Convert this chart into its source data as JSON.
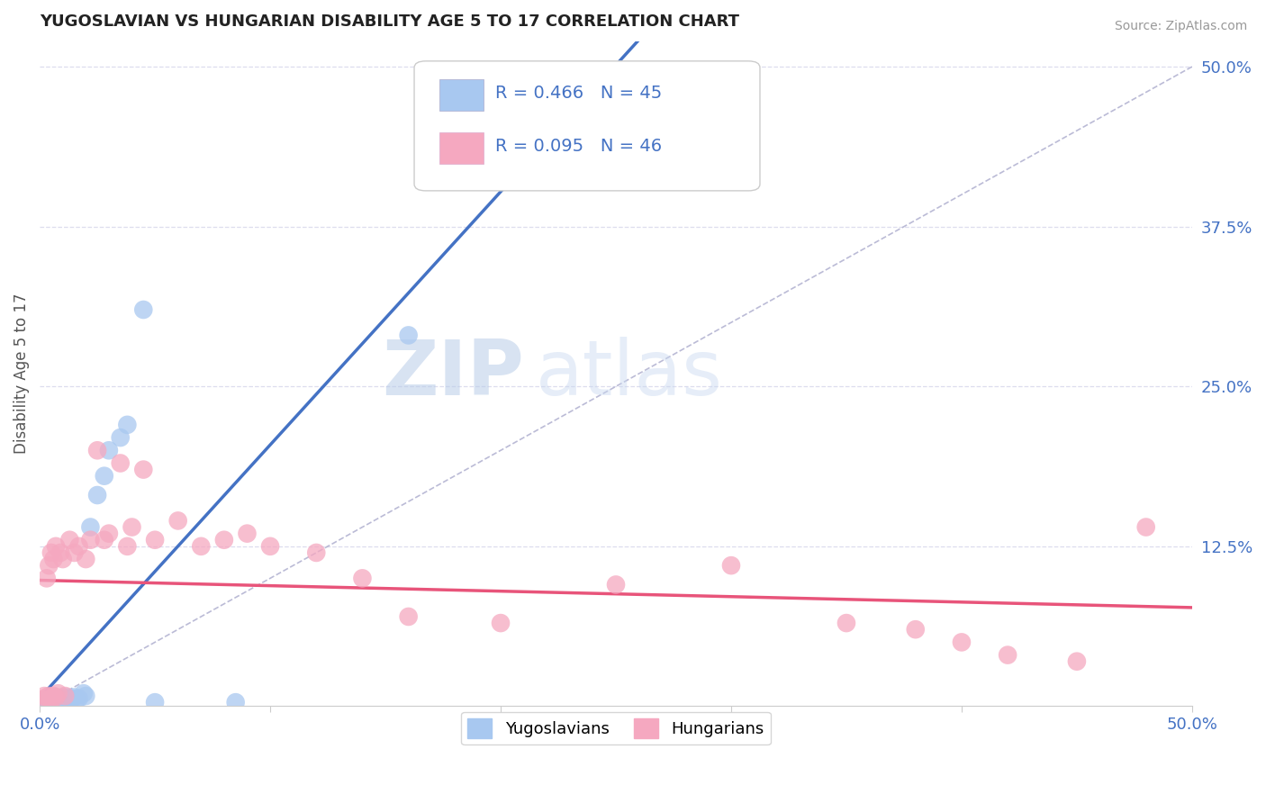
{
  "title": "YUGOSLAVIAN VS HUNGARIAN DISABILITY AGE 5 TO 17 CORRELATION CHART",
  "source": "Source: ZipAtlas.com",
  "ylabel": "Disability Age 5 to 17",
  "xlim": [
    0.0,
    0.5
  ],
  "ylim": [
    0.0,
    0.52
  ],
  "yticks_right": [
    0.125,
    0.25,
    0.375,
    0.5
  ],
  "ytick_right_labels": [
    "12.5%",
    "25.0%",
    "37.5%",
    "50.0%"
  ],
  "yug_R": 0.466,
  "yug_N": 45,
  "hun_R": 0.095,
  "hun_N": 46,
  "blue_color": "#A8C8F0",
  "pink_color": "#F5A8C0",
  "blue_line_color": "#4472C4",
  "pink_line_color": "#E8547A",
  "ref_line_color": "#AAAACC",
  "watermark_zip": "ZIP",
  "watermark_atlas": "atlas",
  "background_color": "#FFFFFF",
  "grid_color": "#DDDDEE",
  "legend_label_yug": "Yugoslavians",
  "legend_label_hun": "Hungarians",
  "title_color": "#222222",
  "axis_label_color": "#4472C4",
  "yug_x": [
    0.001,
    0.002,
    0.002,
    0.003,
    0.003,
    0.003,
    0.004,
    0.004,
    0.004,
    0.005,
    0.005,
    0.005,
    0.005,
    0.006,
    0.006,
    0.006,
    0.007,
    0.007,
    0.007,
    0.008,
    0.008,
    0.009,
    0.009,
    0.01,
    0.01,
    0.011,
    0.012,
    0.012,
    0.013,
    0.014,
    0.015,
    0.016,
    0.017,
    0.019,
    0.02,
    0.022,
    0.025,
    0.028,
    0.03,
    0.035,
    0.038,
    0.045,
    0.05,
    0.085,
    0.16
  ],
  "yug_y": [
    0.002,
    0.003,
    0.004,
    0.002,
    0.003,
    0.004,
    0.002,
    0.003,
    0.005,
    0.002,
    0.003,
    0.004,
    0.005,
    0.002,
    0.004,
    0.006,
    0.003,
    0.005,
    0.007,
    0.003,
    0.005,
    0.003,
    0.006,
    0.004,
    0.007,
    0.005,
    0.004,
    0.007,
    0.005,
    0.006,
    0.007,
    0.005,
    0.006,
    0.01,
    0.008,
    0.14,
    0.165,
    0.18,
    0.2,
    0.21,
    0.22,
    0.31,
    0.003,
    0.003,
    0.29
  ],
  "hun_x": [
    0.001,
    0.002,
    0.003,
    0.003,
    0.004,
    0.004,
    0.005,
    0.005,
    0.006,
    0.006,
    0.007,
    0.007,
    0.008,
    0.009,
    0.01,
    0.011,
    0.013,
    0.015,
    0.017,
    0.02,
    0.022,
    0.025,
    0.028,
    0.03,
    0.035,
    0.038,
    0.04,
    0.045,
    0.05,
    0.06,
    0.07,
    0.08,
    0.09,
    0.1,
    0.12,
    0.14,
    0.16,
    0.2,
    0.25,
    0.3,
    0.35,
    0.38,
    0.4,
    0.42,
    0.45,
    0.48
  ],
  "hun_y": [
    0.005,
    0.008,
    0.007,
    0.1,
    0.008,
    0.11,
    0.005,
    0.12,
    0.008,
    0.115,
    0.007,
    0.125,
    0.01,
    0.12,
    0.115,
    0.008,
    0.13,
    0.12,
    0.125,
    0.115,
    0.13,
    0.2,
    0.13,
    0.135,
    0.19,
    0.125,
    0.14,
    0.185,
    0.13,
    0.145,
    0.125,
    0.13,
    0.135,
    0.125,
    0.12,
    0.1,
    0.07,
    0.065,
    0.095,
    0.11,
    0.065,
    0.06,
    0.05,
    0.04,
    0.035,
    0.14
  ]
}
